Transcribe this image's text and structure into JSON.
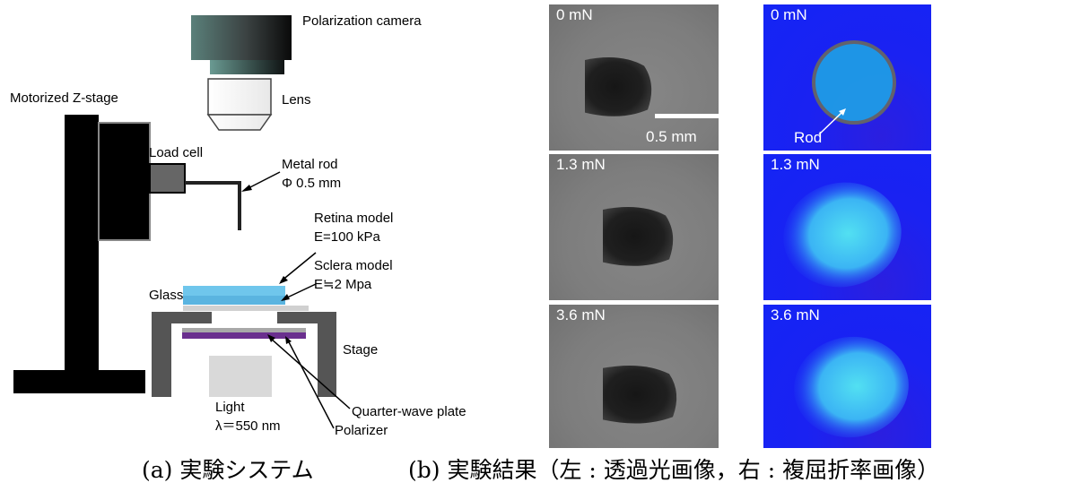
{
  "system_labels": {
    "camera": "Polarization camera",
    "lens": "Lens",
    "zstage": "Motorized Z-stage",
    "loadcell": "Load cell",
    "rod_title": "Metal rod",
    "rod_dia": "Φ 0.5 mm",
    "retina_title": "Retina model",
    "retina_mod": "E=100 kPa",
    "sclera_title": "Sclera model",
    "sclera_mod": "E≒2 Mpa",
    "glass": "Glass",
    "stage": "Stage",
    "light_title": "Light",
    "light_wl": "λ＝550 nm",
    "qwp": "Quarter-wave plate",
    "polarizer": "Polarizer"
  },
  "results": {
    "rows": [
      {
        "force": "0 mN"
      },
      {
        "force": "1.3 mN"
      },
      {
        "force": "3.6 mN"
      }
    ],
    "scale_bar_label": "0.5 mm",
    "rod_label": "Rod"
  },
  "captions": {
    "a": "(a) 実験システム",
    "b": "(b)  実験結果（左 : 透過光画像，右 : 複屈折率画像）"
  },
  "colors": {
    "grey_image": "#7c7c7c",
    "blue_image": "#1a22f2",
    "cyan_blob": "#45d6f2",
    "retina": "#6fc6ec",
    "polarizer": "#6a2f8e"
  }
}
